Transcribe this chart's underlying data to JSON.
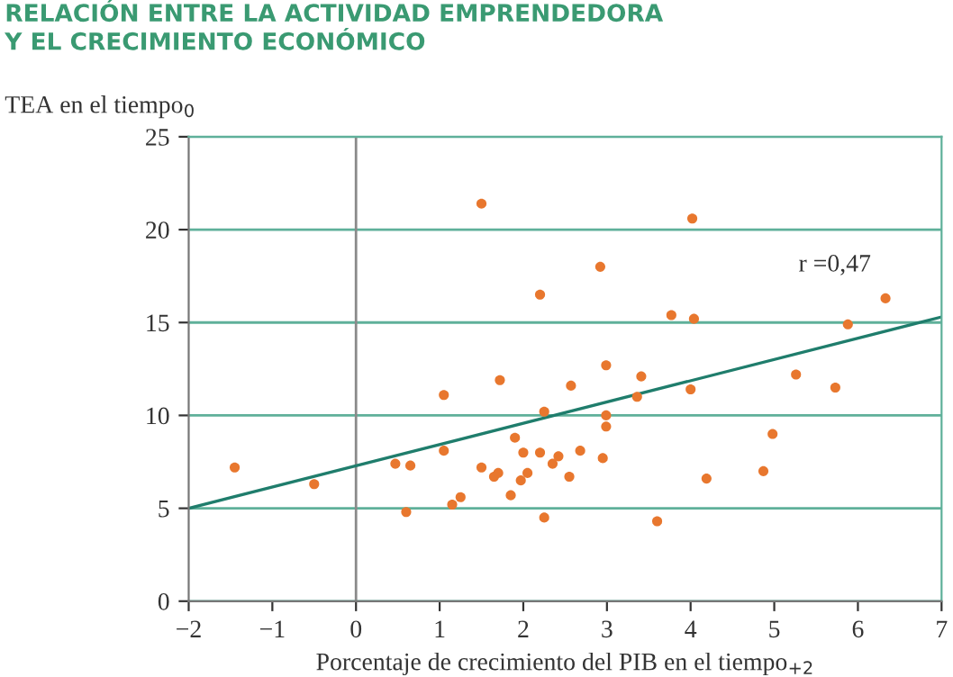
{
  "chart_data": {
    "type": "scatter",
    "title": "RELACIÓN ENTRE LA ACTIVIDAD EMPRENDEDORA\nY EL CRECIMIENTO ECONÓMICO",
    "xlabel": "Porcentaje de crecimiento del PIB en el tiempo$_{+2}$",
    "ylabel": "TEA en el tiempo$_{0}$",
    "xlim": [
      -2,
      7
    ],
    "xticks": [
      {
        "value": -2,
        "label": "−2"
      },
      {
        "value": -1,
        "label": "−1"
      },
      0,
      1,
      2,
      3,
      4,
      5,
      6,
      7
    ],
    "ylim": [
      0,
      25
    ],
    "yticks": [
      0,
      5,
      10,
      15,
      20,
      25
    ],
    "grid": "y",
    "marker": "circle",
    "ref_lines": [
      {
        "axis": "x",
        "value": 0,
        "color": "#8a8a8a"
      }
    ],
    "annotations": [
      "r =0,47"
    ],
    "series": [
      {
        "color": "#e8772e",
        "x": [
          -1.45,
          -0.5,
          0.47,
          0.65,
          0.6,
          1.05,
          1.05,
          1.15,
          1.25,
          1.5,
          1.5,
          1.65,
          1.7,
          1.72,
          1.85,
          1.9,
          1.97,
          2.0,
          2.05,
          2.2,
          2.2,
          2.25,
          2.25,
          2.35,
          2.42,
          2.55,
          2.57,
          2.68,
          2.92,
          2.95,
          2.99,
          2.99,
          2.99,
          3.36,
          3.41,
          3.6,
          3.77,
          4.0,
          4.02,
          4.04,
          4.19,
          4.87,
          4.98,
          5.26,
          5.73,
          5.88,
          6.33
        ],
        "values": [
          7.2,
          6.3,
          7.4,
          7.3,
          4.8,
          11.1,
          8.1,
          5.2,
          5.6,
          21.4,
          7.2,
          6.7,
          6.9,
          11.9,
          5.7,
          8.8,
          6.5,
          8.0,
          6.9,
          16.5,
          8.0,
          10.2,
          4.5,
          7.4,
          7.8,
          6.7,
          11.6,
          8.1,
          18.0,
          7.7,
          12.7,
          10.0,
          9.4,
          11.0,
          12.1,
          4.3,
          15.4,
          11.4,
          20.6,
          15.2,
          6.6,
          7.0,
          9.0,
          12.2,
          11.5,
          14.9,
          16.3
        ]
      },
      {
        "type": "line",
        "color": "#1f7d6c",
        "marker": "none",
        "x": [
          -2,
          7
        ],
        "values": [
          5.0,
          15.3
        ]
      }
    ]
  }
}
